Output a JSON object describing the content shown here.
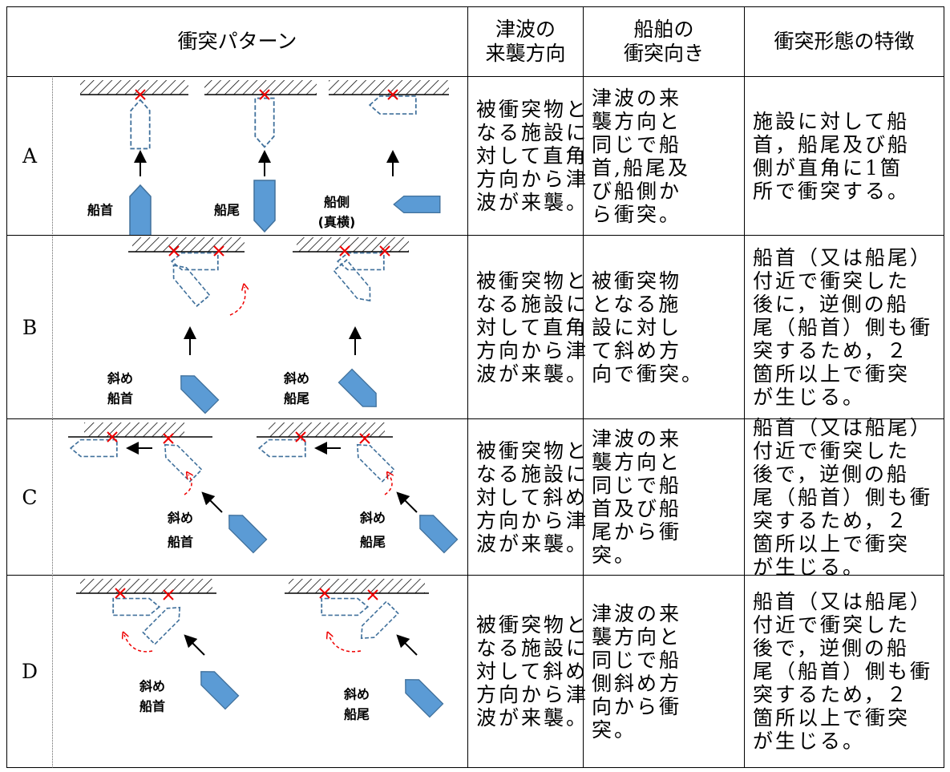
{
  "header": {
    "pattern": "衝突パターン",
    "direction": [
      "津波の",
      "来襲方向"
    ],
    "orientation": [
      "船舶の",
      "衝突向き"
    ],
    "feature": "衝突形態の特徴"
  },
  "rows": [
    {
      "label": "A",
      "ship_labels": [
        [
          "船首"
        ],
        [
          "船尾"
        ],
        [
          "船側",
          "(真横)"
        ]
      ],
      "direction": [
        "被衝突物と",
        "なる施設に",
        "対して直角",
        "方向から津",
        "波が来襲。"
      ],
      "orientation": [
        "津波の来",
        "襲方向と",
        "同じで船",
        "首,船尾及",
        "び船側か",
        "ら衝突。"
      ],
      "feature": [
        "施設に対して船",
        "首，船尾及び船",
        "側が直角に1箇",
        "所で衝突する。"
      ]
    },
    {
      "label": "B",
      "ship_labels": [
        [
          "斜め",
          "船首"
        ],
        [
          "斜め",
          "船尾"
        ]
      ],
      "direction": [
        "被衝突物と",
        "なる施設に",
        "対して直角",
        "方向から津",
        "波が来襲。"
      ],
      "orientation": [
        "被衝突物",
        "となる施",
        "設に対し",
        "て斜め方",
        "向で衝突。"
      ],
      "feature": [
        "船首（又は船尾）",
        "付近で衝突した",
        "後に，逆側の船",
        "尾（船首）側も衝",
        "突するため，２",
        "箇所以上で衝突",
        "が生じる。"
      ]
    },
    {
      "label": "C",
      "ship_labels": [
        [
          "斜め",
          "船首"
        ],
        [
          "斜め",
          "船尾"
        ]
      ],
      "direction": [
        "被衝突物と",
        "なる施設に",
        "対して斜め",
        "方向から津",
        "波が来襲。"
      ],
      "orientation": [
        "津波の来",
        "襲方向と",
        "同じで船",
        "首及び船",
        "尾から衝",
        "突。"
      ],
      "feature": [
        "船首（又は船尾）",
        "付近で衝突した",
        "後で，逆側の船",
        "尾（船首）側も衝",
        "突するため，２",
        "箇所以上で衝突",
        "が生じる。"
      ]
    },
    {
      "label": "D",
      "ship_labels": [
        [
          "斜め",
          "船首"
        ],
        [
          "斜め",
          "船尾"
        ]
      ],
      "direction": [
        "被衝突物と",
        "なる施設に",
        "対して斜め",
        "方向から津",
        "波が来襲。"
      ],
      "orientation": [
        "津波の来",
        "襲方向と",
        "同じで船",
        "側斜め方",
        "向から衝",
        "突。"
      ],
      "feature": [
        "船首（又は船尾）",
        "付近で衝突した",
        "後で，逆側の船",
        "尾（船首）側も衝",
        "突するため，２",
        "箇所以上で衝突",
        "が生じる。"
      ]
    }
  ]
}
